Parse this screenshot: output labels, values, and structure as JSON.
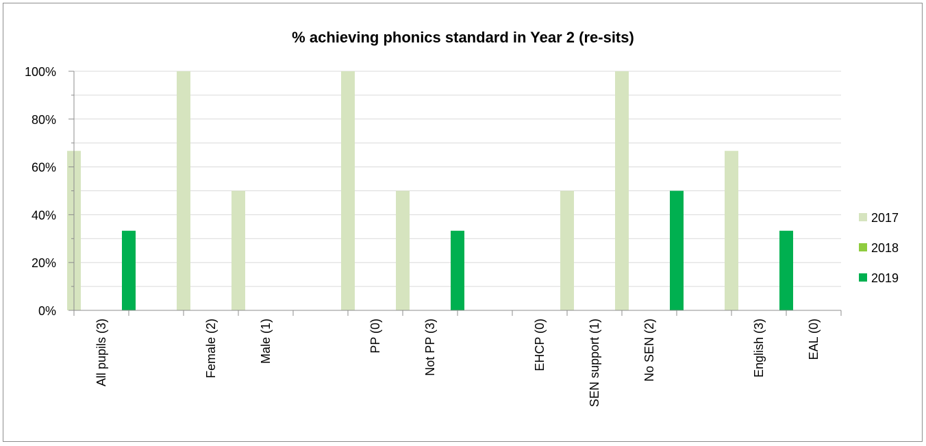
{
  "chart_data": {
    "type": "bar",
    "title": "% achieving phonics standard in Year 2 (re-sits)",
    "xlabel": "",
    "ylabel": "",
    "ylim": [
      0,
      100
    ],
    "ytick_values": [
      0,
      20,
      40,
      60,
      80,
      100
    ],
    "ytick_labels": [
      "0%",
      "20%",
      "40%",
      "60%",
      "80%",
      "100%"
    ],
    "categories": [
      "All pupils (3)",
      "",
      "Female (2)",
      "Male (1)",
      "",
      "PP (0)",
      "Not PP (3)",
      "",
      "EHCP (0)",
      "SEN support (1)",
      "No SEN (2)",
      "",
      "English (3)",
      "EAL (0)"
    ],
    "series": [
      {
        "name": "2017",
        "color": "#d6e4bf",
        "values": [
          66.7,
          null,
          100,
          50,
          null,
          100,
          50,
          null,
          null,
          50,
          100,
          null,
          66.7,
          null
        ]
      },
      {
        "name": "2018",
        "color": "#8fcc3f",
        "values": [
          null,
          null,
          null,
          null,
          null,
          null,
          null,
          null,
          null,
          null,
          null,
          null,
          null,
          null
        ]
      },
      {
        "name": "2019",
        "color": "#00b050",
        "values": [
          33.3,
          null,
          50,
          0,
          null,
          0,
          33.3,
          null,
          null,
          0,
          50,
          null,
          33.3,
          null
        ]
      }
    ],
    "grid": true,
    "legend": "right"
  }
}
